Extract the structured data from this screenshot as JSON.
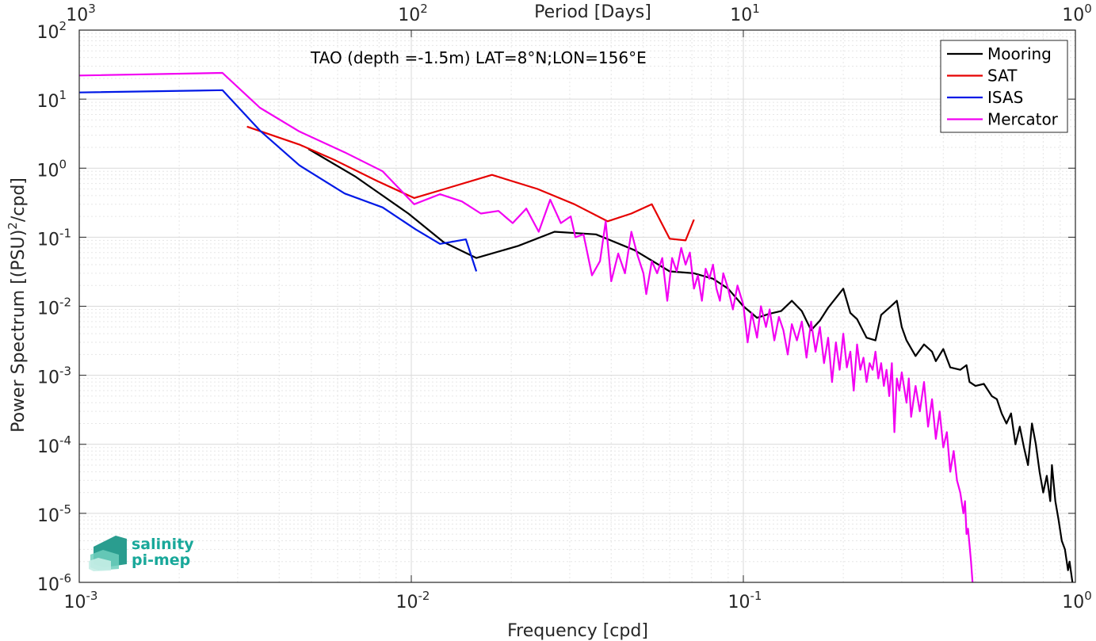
{
  "chart_data": {
    "type": "line",
    "title": "",
    "xlabel": "Frequency [cpd]",
    "ylabel": "Power Spectrum [(PSU)²/cpd]",
    "ylabel_parts": {
      "before": "Power Spectrum [(PSU)",
      "sup": "2",
      "after": "/cpd]"
    },
    "x2label": "Period [Days]",
    "annotation": "TAO (depth =-1.5m) LAT=8°N;LON=156°E",
    "xscale": "log",
    "yscale": "log",
    "xlim": [
      0.001,
      1
    ],
    "ylim": [
      1e-06,
      100
    ],
    "grid": true,
    "minor_grid": true,
    "legend_location": "top-right",
    "x_ticks": [
      {
        "value": 0.001,
        "base": "10",
        "exp": "-3"
      },
      {
        "value": 0.01,
        "base": "10",
        "exp": "-2"
      },
      {
        "value": 0.1,
        "base": "10",
        "exp": "-1"
      },
      {
        "value": 1,
        "base": "10",
        "exp": "0"
      }
    ],
    "x2_ticks": [
      {
        "value": 0.001,
        "base": "10",
        "exp": "3"
      },
      {
        "value": 0.01,
        "base": "10",
        "exp": "2"
      },
      {
        "value": 0.1,
        "base": "10",
        "exp": "1"
      },
      {
        "value": 1,
        "base": "10",
        "exp": "0"
      }
    ],
    "y_ticks": [
      {
        "value": 100,
        "base": "10",
        "exp": "2"
      },
      {
        "value": 10,
        "base": "10",
        "exp": "1"
      },
      {
        "value": 1,
        "base": "10",
        "exp": "0"
      },
      {
        "value": 0.1,
        "base": "10",
        "exp": "-1"
      },
      {
        "value": 0.01,
        "base": "10",
        "exp": "-2"
      },
      {
        "value": 0.001,
        "base": "10",
        "exp": "-3"
      },
      {
        "value": 0.0001,
        "base": "10",
        "exp": "-4"
      },
      {
        "value": 1e-05,
        "base": "10",
        "exp": "-5"
      },
      {
        "value": 1e-06,
        "base": "10",
        "exp": "-6"
      }
    ],
    "series": [
      {
        "name": "Mooring",
        "color": "#000000",
        "points": [
          [
            0.0049,
            1.9
          ],
          [
            0.0068,
            0.75
          ],
          [
            0.0098,
            0.22
          ],
          [
            0.0125,
            0.085
          ],
          [
            0.0157,
            0.05
          ],
          [
            0.021,
            0.075
          ],
          [
            0.027,
            0.12
          ],
          [
            0.036,
            0.11
          ],
          [
            0.047,
            0.065
          ],
          [
            0.06,
            0.032
          ],
          [
            0.071,
            0.03
          ],
          [
            0.081,
            0.025
          ],
          [
            0.09,
            0.018
          ],
          [
            0.1,
            0.01
          ],
          [
            0.11,
            0.0068
          ],
          [
            0.12,
            0.0078
          ],
          [
            0.13,
            0.0085
          ],
          [
            0.14,
            0.012
          ],
          [
            0.15,
            0.0085
          ],
          [
            0.16,
            0.0045
          ],
          [
            0.17,
            0.0062
          ],
          [
            0.18,
            0.0095
          ],
          [
            0.2,
            0.018
          ],
          [
            0.21,
            0.008
          ],
          [
            0.22,
            0.0065
          ],
          [
            0.235,
            0.0035
          ],
          [
            0.25,
            0.0032
          ],
          [
            0.26,
            0.0075
          ],
          [
            0.275,
            0.0095
          ],
          [
            0.29,
            0.012
          ],
          [
            0.3,
            0.005
          ],
          [
            0.31,
            0.0032
          ],
          [
            0.33,
            0.0019
          ],
          [
            0.35,
            0.0028
          ],
          [
            0.37,
            0.0022
          ],
          [
            0.38,
            0.0016
          ],
          [
            0.4,
            0.0024
          ],
          [
            0.42,
            0.0013
          ],
          [
            0.45,
            0.0012
          ],
          [
            0.47,
            0.0014
          ],
          [
            0.48,
            0.0008
          ],
          [
            0.5,
            0.0007
          ],
          [
            0.53,
            0.00075
          ],
          [
            0.56,
            0.0005
          ],
          [
            0.58,
            0.00045
          ],
          [
            0.6,
            0.00028
          ],
          [
            0.62,
            0.0002
          ],
          [
            0.64,
            0.00028
          ],
          [
            0.66,
            0.0001
          ],
          [
            0.68,
            0.00018
          ],
          [
            0.7,
            9e-05
          ],
          [
            0.72,
            5e-05
          ],
          [
            0.74,
            0.0002
          ],
          [
            0.76,
            0.0001
          ],
          [
            0.78,
            4e-05
          ],
          [
            0.8,
            2e-05
          ],
          [
            0.82,
            3.5e-05
          ],
          [
            0.84,
            1.5e-05
          ],
          [
            0.85,
            5e-05
          ],
          [
            0.87,
            1.5e-05
          ],
          [
            0.89,
            8e-06
          ],
          [
            0.91,
            4e-06
          ],
          [
            0.93,
            3e-06
          ],
          [
            0.95,
            1.5e-06
          ],
          [
            0.96,
            2e-06
          ],
          [
            0.98,
            1e-06
          ]
        ]
      },
      {
        "name": "SAT",
        "color": "#e60000",
        "points": [
          [
            0.0032,
            4.0
          ],
          [
            0.0046,
            2.2
          ],
          [
            0.0059,
            1.3
          ],
          [
            0.0079,
            0.65
          ],
          [
            0.0102,
            0.37
          ],
          [
            0.0126,
            0.5
          ],
          [
            0.0175,
            0.8
          ],
          [
            0.024,
            0.5
          ],
          [
            0.031,
            0.3
          ],
          [
            0.039,
            0.17
          ],
          [
            0.046,
            0.22
          ],
          [
            0.053,
            0.3
          ],
          [
            0.06,
            0.095
          ],
          [
            0.067,
            0.09
          ],
          [
            0.071,
            0.18
          ]
        ]
      },
      {
        "name": "ISAS",
        "color": "#0019e6",
        "points": [
          [
            0.001,
            12.5
          ],
          [
            0.0027,
            13.5
          ],
          [
            0.0035,
            3.5
          ],
          [
            0.0046,
            1.1
          ],
          [
            0.0063,
            0.43
          ],
          [
            0.0082,
            0.27
          ],
          [
            0.0103,
            0.13
          ],
          [
            0.0122,
            0.08
          ],
          [
            0.0146,
            0.093
          ],
          [
            0.0157,
            0.032
          ]
        ]
      },
      {
        "name": "Mercator",
        "color": "#f200f2",
        "points": [
          [
            0.001,
            22
          ],
          [
            0.0027,
            24
          ],
          [
            0.0035,
            7.5
          ],
          [
            0.0046,
            3.4
          ],
          [
            0.0063,
            1.7
          ],
          [
            0.0082,
            0.9
          ],
          [
            0.0102,
            0.3
          ],
          [
            0.0122,
            0.42
          ],
          [
            0.0142,
            0.33
          ],
          [
            0.0162,
            0.22
          ],
          [
            0.0183,
            0.24
          ],
          [
            0.0202,
            0.16
          ],
          [
            0.0222,
            0.26
          ],
          [
            0.0242,
            0.12
          ],
          [
            0.0262,
            0.35
          ],
          [
            0.0282,
            0.16
          ],
          [
            0.0302,
            0.2
          ],
          [
            0.0312,
            0.1
          ],
          [
            0.033,
            0.11
          ],
          [
            0.035,
            0.028
          ],
          [
            0.037,
            0.045
          ],
          [
            0.0385,
            0.17
          ],
          [
            0.04,
            0.023
          ],
          [
            0.042,
            0.058
          ],
          [
            0.044,
            0.03
          ],
          [
            0.046,
            0.12
          ],
          [
            0.048,
            0.055
          ],
          [
            0.05,
            0.03
          ],
          [
            0.051,
            0.015
          ],
          [
            0.053,
            0.045
          ],
          [
            0.055,
            0.03
          ],
          [
            0.057,
            0.05
          ],
          [
            0.059,
            0.012
          ],
          [
            0.061,
            0.05
          ],
          [
            0.063,
            0.032
          ],
          [
            0.065,
            0.07
          ],
          [
            0.067,
            0.04
          ],
          [
            0.069,
            0.06
          ],
          [
            0.071,
            0.018
          ],
          [
            0.073,
            0.028
          ],
          [
            0.075,
            0.012
          ],
          [
            0.077,
            0.035
          ],
          [
            0.079,
            0.025
          ],
          [
            0.081,
            0.04
          ],
          [
            0.083,
            0.018
          ],
          [
            0.085,
            0.012
          ],
          [
            0.087,
            0.03
          ],
          [
            0.09,
            0.018
          ],
          [
            0.093,
            0.009
          ],
          [
            0.096,
            0.02
          ],
          [
            0.1,
            0.0105
          ],
          [
            0.103,
            0.003
          ],
          [
            0.106,
            0.008
          ],
          [
            0.11,
            0.0035
          ],
          [
            0.113,
            0.01
          ],
          [
            0.117,
            0.005
          ],
          [
            0.12,
            0.009
          ],
          [
            0.124,
            0.0032
          ],
          [
            0.128,
            0.007
          ],
          [
            0.132,
            0.0045
          ],
          [
            0.136,
            0.002
          ],
          [
            0.14,
            0.0055
          ],
          [
            0.145,
            0.0032
          ],
          [
            0.15,
            0.006
          ],
          [
            0.155,
            0.0018
          ],
          [
            0.16,
            0.006
          ],
          [
            0.165,
            0.0022
          ],
          [
            0.17,
            0.005
          ],
          [
            0.175,
            0.0015
          ],
          [
            0.18,
            0.0035
          ],
          [
            0.185,
            0.0008
          ],
          [
            0.19,
            0.003
          ],
          [
            0.195,
            0.0012
          ],
          [
            0.2,
            0.004
          ],
          [
            0.205,
            0.0013
          ],
          [
            0.21,
            0.0022
          ],
          [
            0.215,
            0.0006
          ],
          [
            0.22,
            0.0028
          ],
          [
            0.225,
            0.0012
          ],
          [
            0.23,
            0.0018
          ],
          [
            0.235,
            0.0008
          ],
          [
            0.24,
            0.0015
          ],
          [
            0.245,
            0.0012
          ],
          [
            0.25,
            0.0022
          ],
          [
            0.255,
            0.0009
          ],
          [
            0.26,
            0.0015
          ],
          [
            0.265,
            0.0007
          ],
          [
            0.27,
            0.0012
          ],
          [
            0.275,
            0.0005
          ],
          [
            0.28,
            0.0015
          ],
          [
            0.285,
            0.00015
          ],
          [
            0.29,
            0.0009
          ],
          [
            0.295,
            0.0006
          ],
          [
            0.3,
            0.0011
          ],
          [
            0.31,
            0.0004
          ],
          [
            0.315,
            0.0009
          ],
          [
            0.32,
            0.00025
          ],
          [
            0.33,
            0.0007
          ],
          [
            0.34,
            0.0003
          ],
          [
            0.35,
            0.0008
          ],
          [
            0.36,
            0.00018
          ],
          [
            0.37,
            0.00045
          ],
          [
            0.38,
            0.00012
          ],
          [
            0.39,
            0.0003
          ],
          [
            0.4,
            9e-05
          ],
          [
            0.41,
            0.00015
          ],
          [
            0.42,
            4e-05
          ],
          [
            0.43,
            8e-05
          ],
          [
            0.44,
            3e-05
          ],
          [
            0.45,
            2e-05
          ],
          [
            0.46,
            1e-05
          ],
          [
            0.465,
            1.5e-05
          ],
          [
            0.47,
            5e-06
          ],
          [
            0.475,
            6e-06
          ],
          [
            0.48,
            3.5e-06
          ],
          [
            0.485,
            2e-06
          ],
          [
            0.49,
            1e-06
          ]
        ]
      }
    ]
  },
  "logo": {
    "line1": "salinity",
    "line2": "pi-mep"
  },
  "colors": {
    "axis": "#262626",
    "grid": "#d9d9d9",
    "background": "#ffffff"
  }
}
